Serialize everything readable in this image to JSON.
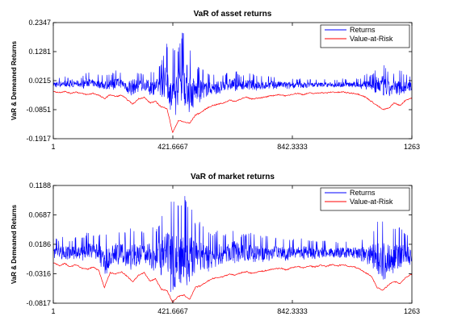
{
  "figure": {
    "background": "#ffffff"
  },
  "chart_data": [
    {
      "type": "line",
      "title": "VaR of asset returns",
      "xlabel": "",
      "ylabel": "VaR & Demeaned Returns",
      "xlim": [
        1,
        1263
      ],
      "ylim": [
        -0.1917,
        0.2347
      ],
      "x_ticks": [
        1,
        421.6667,
        842.3333,
        1263
      ],
      "x_tick_labels": [
        "1",
        "421.6667",
        "842.3333",
        "1263"
      ],
      "y_ticks": [
        -0.1917,
        -0.0851,
        0.0215,
        0.1281,
        0.2347
      ],
      "y_tick_labels": [
        "-0.1917",
        "-0.0851",
        "0.0215",
        "0.1281",
        "0.2347"
      ],
      "legend": {
        "position": "top-right"
      },
      "grid": false,
      "series": [
        {
          "name": "Returns",
          "color": "#0000ff",
          "sampled": true,
          "x": [
            1,
            21,
            41,
            61,
            81,
            101,
            121,
            141,
            161,
            181,
            201,
            221,
            241,
            261,
            281,
            301,
            321,
            341,
            361,
            381,
            401,
            421,
            441,
            461,
            481,
            501,
            521,
            541,
            561,
            581,
            601,
            621,
            641,
            661,
            681,
            701,
            721,
            741,
            761,
            781,
            801,
            821,
            841,
            861,
            881,
            901,
            921,
            941,
            961,
            981,
            1001,
            1021,
            1041,
            1061,
            1081,
            1101,
            1121,
            1141,
            1161,
            1181,
            1201,
            1221,
            1241,
            1263
          ],
          "lower": [
            -0.005,
            -0.005,
            -0.003,
            -0.005,
            -0.002,
            -0.007,
            -0.006,
            -0.004,
            -0.01,
            -0.016,
            -0.012,
            -0.012,
            -0.009,
            -0.025,
            -0.04,
            -0.02,
            -0.015,
            -0.035,
            -0.03,
            -0.045,
            -0.035,
            -0.16,
            -0.06,
            -0.085,
            -0.1,
            -0.065,
            -0.06,
            -0.04,
            -0.035,
            -0.03,
            -0.028,
            -0.015,
            -0.02,
            -0.015,
            -0.01,
            -0.018,
            -0.015,
            -0.015,
            -0.012,
            -0.01,
            -0.008,
            -0.01,
            -0.008,
            -0.004,
            -0.008,
            -0.004,
            -0.006,
            -0.003,
            -0.004,
            -0.003,
            -0.004,
            -0.002,
            -0.004,
            -0.004,
            -0.008,
            -0.012,
            -0.02,
            -0.03,
            -0.045,
            -0.05,
            -0.035,
            -0.04,
            -0.025,
            -0.02
          ],
          "upper": [
            0.035,
            0.032,
            0.04,
            0.025,
            0.038,
            0.035,
            0.055,
            0.04,
            0.045,
            0.045,
            0.043,
            0.06,
            0.05,
            0.055,
            0.07,
            0.05,
            0.05,
            0.06,
            0.055,
            0.09,
            0.165,
            0.15,
            0.14,
            0.23,
            0.155,
            0.075,
            0.075,
            0.05,
            0.045,
            0.055,
            0.045,
            0.055,
            0.065,
            0.04,
            0.045,
            0.05,
            0.04,
            0.038,
            0.04,
            0.036,
            0.035,
            0.033,
            0.03,
            0.028,
            0.032,
            0.026,
            0.028,
            0.025,
            0.028,
            0.024,
            0.026,
            0.03,
            0.025,
            0.03,
            0.03,
            0.05,
            0.04,
            0.08,
            0.09,
            0.06,
            0.055,
            0.065,
            0.045,
            0.035
          ]
        },
        {
          "name": "Value-at-Risk",
          "color": "#ff0000",
          "sampled": true,
          "x": [
            1,
            21,
            41,
            61,
            81,
            101,
            121,
            141,
            161,
            181,
            201,
            221,
            241,
            261,
            281,
            301,
            321,
            341,
            361,
            381,
            401,
            421,
            441,
            461,
            481,
            501,
            521,
            541,
            561,
            581,
            601,
            621,
            641,
            661,
            681,
            701,
            721,
            741,
            761,
            781,
            801,
            821,
            841,
            861,
            881,
            901,
            921,
            941,
            961,
            981,
            1001,
            1021,
            1041,
            1061,
            1081,
            1101,
            1121,
            1141,
            1161,
            1181,
            1201,
            1221,
            1241,
            1263
          ],
          "values": [
            -0.018,
            -0.022,
            -0.018,
            -0.025,
            -0.02,
            -0.026,
            -0.03,
            -0.025,
            -0.032,
            -0.045,
            -0.03,
            -0.037,
            -0.032,
            -0.048,
            -0.065,
            -0.045,
            -0.04,
            -0.06,
            -0.055,
            -0.075,
            -0.08,
            -0.17,
            -0.125,
            -0.13,
            -0.135,
            -0.105,
            -0.095,
            -0.08,
            -0.07,
            -0.065,
            -0.06,
            -0.05,
            -0.055,
            -0.045,
            -0.04,
            -0.046,
            -0.042,
            -0.04,
            -0.036,
            -0.032,
            -0.03,
            -0.035,
            -0.028,
            -0.025,
            -0.03,
            -0.024,
            -0.026,
            -0.022,
            -0.024,
            -0.02,
            -0.022,
            -0.02,
            -0.024,
            -0.025,
            -0.03,
            -0.04,
            -0.055,
            -0.07,
            -0.085,
            -0.08,
            -0.06,
            -0.07,
            -0.05,
            -0.042
          ]
        }
      ]
    },
    {
      "type": "line",
      "title": "VaR of market returns",
      "xlabel": "",
      "ylabel": "VaR & Demeaned Returns",
      "xlim": [
        1,
        1263
      ],
      "ylim": [
        -0.0817,
        0.1188
      ],
      "x_ticks": [
        1,
        421.6667,
        842.3333,
        1263
      ],
      "x_tick_labels": [
        "1",
        "421.6667",
        "842.3333",
        "1263"
      ],
      "y_ticks": [
        -0.0817,
        -0.0316,
        0.0186,
        0.0687,
        0.1188
      ],
      "y_tick_labels": [
        "-0.0817",
        "-0.0316",
        "0.0186",
        "0.0687",
        "0.1188"
      ],
      "legend": {
        "position": "top-right"
      },
      "grid": false,
      "series": [
        {
          "name": "Returns",
          "color": "#0000ff",
          "sampled": true,
          "x": [
            1,
            21,
            41,
            61,
            81,
            101,
            121,
            141,
            161,
            181,
            201,
            221,
            241,
            261,
            281,
            301,
            321,
            341,
            361,
            381,
            401,
            421,
            441,
            461,
            481,
            501,
            521,
            541,
            561,
            581,
            601,
            621,
            641,
            661,
            681,
            701,
            721,
            741,
            761,
            781,
            801,
            821,
            841,
            861,
            881,
            901,
            921,
            941,
            961,
            981,
            1001,
            1021,
            1041,
            1061,
            1081,
            1101,
            1121,
            1141,
            1161,
            1181,
            1201,
            1221,
            1241,
            1263
          ],
          "lower": [
            -0.005,
            -0.008,
            -0.006,
            -0.01,
            -0.008,
            -0.012,
            -0.01,
            -0.008,
            -0.012,
            -0.04,
            -0.02,
            -0.018,
            -0.015,
            -0.02,
            -0.03,
            -0.018,
            -0.014,
            -0.03,
            -0.025,
            -0.045,
            -0.04,
            -0.075,
            -0.055,
            -0.05,
            -0.06,
            -0.035,
            -0.035,
            -0.03,
            -0.025,
            -0.022,
            -0.02,
            -0.015,
            -0.018,
            -0.014,
            -0.012,
            -0.015,
            -0.012,
            -0.012,
            -0.01,
            -0.008,
            -0.008,
            -0.01,
            -0.008,
            -0.006,
            -0.008,
            -0.006,
            -0.007,
            -0.005,
            -0.006,
            -0.005,
            -0.006,
            -0.005,
            -0.006,
            -0.007,
            -0.01,
            -0.015,
            -0.02,
            -0.04,
            -0.045,
            -0.035,
            -0.03,
            -0.028,
            -0.02,
            -0.015
          ],
          "upper": [
            0.03,
            0.028,
            0.035,
            0.025,
            0.032,
            0.03,
            0.04,
            0.035,
            0.038,
            0.036,
            0.035,
            0.045,
            0.04,
            0.045,
            0.05,
            0.042,
            0.04,
            0.05,
            0.045,
            0.065,
            0.085,
            0.11,
            0.095,
            0.105,
            0.09,
            0.06,
            0.06,
            0.045,
            0.04,
            0.045,
            0.038,
            0.042,
            0.05,
            0.035,
            0.038,
            0.04,
            0.034,
            0.032,
            0.034,
            0.03,
            0.03,
            0.028,
            0.028,
            0.026,
            0.03,
            0.025,
            0.026,
            0.024,
            0.026,
            0.023,
            0.024,
            0.026,
            0.024,
            0.026,
            0.028,
            0.035,
            0.04,
            0.06,
            0.065,
            0.05,
            0.045,
            0.05,
            0.04,
            0.035
          ]
        },
        {
          "name": "Value-at-Risk",
          "color": "#ff0000",
          "sampled": true,
          "x": [
            1,
            21,
            41,
            61,
            81,
            101,
            121,
            141,
            161,
            181,
            201,
            221,
            241,
            261,
            281,
            301,
            321,
            341,
            361,
            381,
            401,
            421,
            441,
            461,
            481,
            501,
            521,
            541,
            561,
            581,
            601,
            621,
            641,
            661,
            681,
            701,
            721,
            741,
            761,
            781,
            801,
            821,
            841,
            861,
            881,
            901,
            921,
            941,
            961,
            981,
            1001,
            1021,
            1041,
            1061,
            1081,
            1101,
            1121,
            1141,
            1161,
            1181,
            1201,
            1221,
            1241,
            1263
          ],
          "values": [
            -0.012,
            -0.018,
            -0.014,
            -0.02,
            -0.016,
            -0.022,
            -0.024,
            -0.02,
            -0.026,
            -0.055,
            -0.03,
            -0.032,
            -0.028,
            -0.036,
            -0.045,
            -0.034,
            -0.03,
            -0.044,
            -0.04,
            -0.058,
            -0.06,
            -0.08,
            -0.07,
            -0.068,
            -0.075,
            -0.055,
            -0.052,
            -0.045,
            -0.04,
            -0.038,
            -0.036,
            -0.032,
            -0.034,
            -0.03,
            -0.028,
            -0.031,
            -0.028,
            -0.027,
            -0.025,
            -0.023,
            -0.022,
            -0.025,
            -0.021,
            -0.019,
            -0.022,
            -0.018,
            -0.02,
            -0.017,
            -0.019,
            -0.016,
            -0.018,
            -0.016,
            -0.019,
            -0.02,
            -0.024,
            -0.03,
            -0.036,
            -0.055,
            -0.06,
            -0.05,
            -0.045,
            -0.048,
            -0.038,
            -0.032
          ]
        }
      ]
    }
  ]
}
